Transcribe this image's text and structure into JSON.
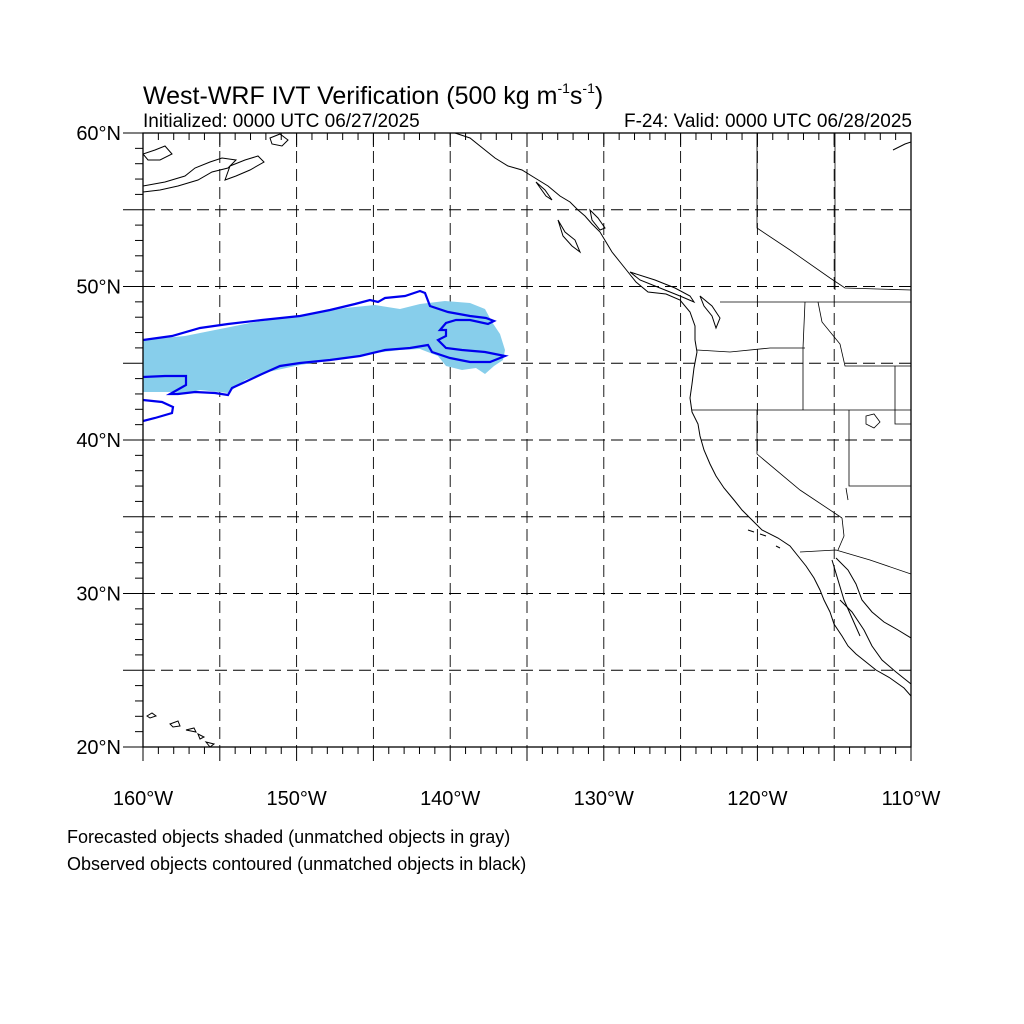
{
  "title": {
    "main": "West-WRF IVT Verification (500 kg m",
    "exp1": "-1",
    "mid": "s",
    "exp2": "-1",
    "end": ")"
  },
  "subtitle_left": "Initialized: 0000 UTC 06/27/2025",
  "subtitle_right": "F-24: Valid: 0000 UTC 06/28/2025",
  "caption": [
    "Forecasted objects shaded (unmatched objects in gray)",
    "Observed objects contoured (unmatched objects in black)"
  ],
  "map": {
    "lon_range": [
      -160,
      -110
    ],
    "lat_range": [
      20,
      60
    ],
    "grid_lon": [
      -155,
      -150,
      -145,
      -140,
      -135,
      -130,
      -125,
      -120,
      -115
    ],
    "grid_lat": [
      25,
      30,
      35,
      40,
      45,
      50,
      55
    ],
    "lat_labels": [
      {
        "lat": 60,
        "label": "60°N"
      },
      {
        "lat": 50,
        "label": "50°N"
      },
      {
        "lat": 40,
        "label": "40°N"
      },
      {
        "lat": 30,
        "label": "30°N"
      },
      {
        "lat": 20,
        "label": "20°N"
      }
    ],
    "lon_labels": [
      {
        "lon": -160,
        "label": "160°W"
      },
      {
        "lon": -150,
        "label": "150°W"
      },
      {
        "lon": -140,
        "label": "140°W"
      },
      {
        "lon": -130,
        "label": "130°W"
      },
      {
        "lon": -120,
        "label": "120°W"
      },
      {
        "lon": -110,
        "label": "110°W"
      }
    ],
    "colors": {
      "forecast_fill": "#87ceeb",
      "observed_contour": "#0000ee",
      "coastline": "#000000",
      "grid": "#000000"
    }
  }
}
